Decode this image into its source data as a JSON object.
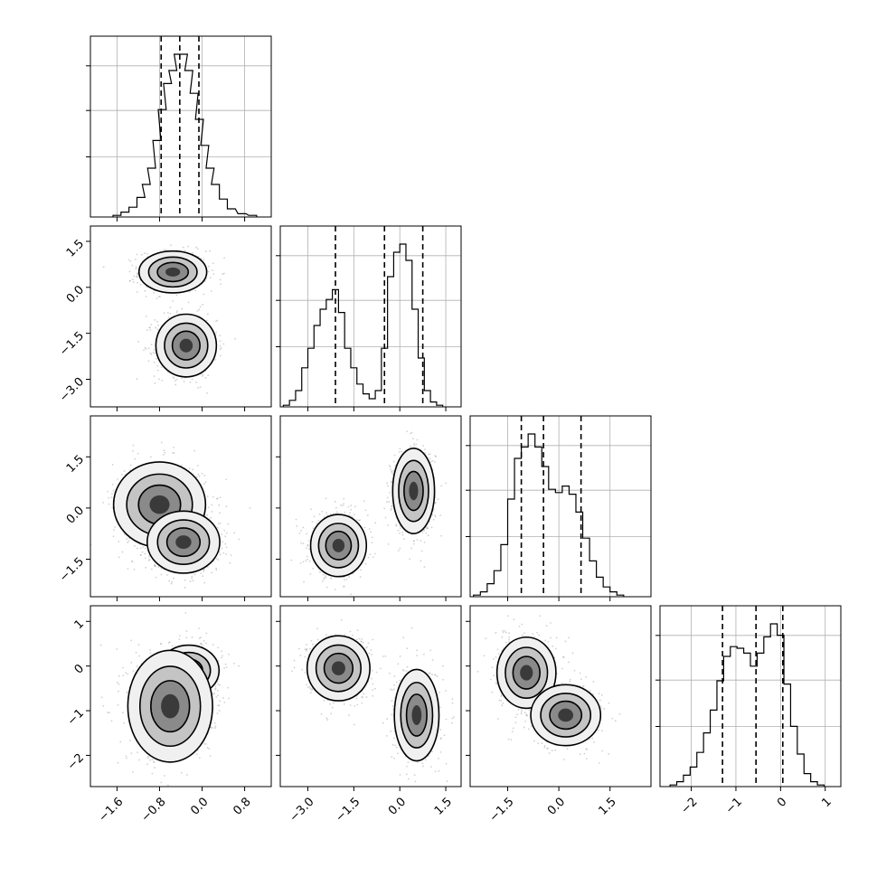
{
  "chart_data": {
    "type": "corner",
    "parameters": [
      {
        "ticks": [
          -1.6,
          -0.8,
          0.0,
          0.8
        ],
        "tick_labels": [
          "−1.6",
          "−0.8",
          "0.0",
          "0.8"
        ],
        "range": [
          -2.1,
          1.3
        ],
        "quantiles": [
          -0.77,
          -0.42,
          -0.06
        ],
        "hist_bins": [
          {
            "x": -1.6,
            "y": 0.01
          },
          {
            "x": -1.45,
            "y": 0.03
          },
          {
            "x": -1.3,
            "y": 0.06
          },
          {
            "x": -1.15,
            "y": 0.12
          },
          {
            "x": -1.05,
            "y": 0.2
          },
          {
            "x": -0.95,
            "y": 0.3
          },
          {
            "x": -0.85,
            "y": 0.47
          },
          {
            "x": -0.75,
            "y": 0.66
          },
          {
            "x": -0.65,
            "y": 0.82
          },
          {
            "x": -0.55,
            "y": 0.9
          },
          {
            "x": -0.45,
            "y": 1.0
          },
          {
            "x": -0.35,
            "y": 1.0
          },
          {
            "x": -0.25,
            "y": 0.9
          },
          {
            "x": -0.15,
            "y": 0.76
          },
          {
            "x": -0.05,
            "y": 0.6
          },
          {
            "x": 0.05,
            "y": 0.44
          },
          {
            "x": 0.15,
            "y": 0.3
          },
          {
            "x": 0.25,
            "y": 0.2
          },
          {
            "x": 0.4,
            "y": 0.11
          },
          {
            "x": 0.55,
            "y": 0.05
          },
          {
            "x": 0.75,
            "y": 0.02
          },
          {
            "x": 0.95,
            "y": 0.01
          }
        ]
      },
      {
        "ticks": [
          -3.0,
          -1.5,
          0.0,
          1.5
        ],
        "tick_labels": [
          "−3.0",
          "−1.5",
          "0.0",
          "1.5"
        ],
        "range": [
          -3.9,
          2.0
        ],
        "quantiles": [
          -2.1,
          -0.5,
          0.75
        ],
        "hist_bins": [
          {
            "x": -3.7,
            "y": 0.01
          },
          {
            "x": -3.5,
            "y": 0.04
          },
          {
            "x": -3.3,
            "y": 0.1
          },
          {
            "x": -3.1,
            "y": 0.24
          },
          {
            "x": -2.9,
            "y": 0.36
          },
          {
            "x": -2.7,
            "y": 0.5
          },
          {
            "x": -2.5,
            "y": 0.6
          },
          {
            "x": -2.3,
            "y": 0.66
          },
          {
            "x": -2.1,
            "y": 0.72
          },
          {
            "x": -1.9,
            "y": 0.58
          },
          {
            "x": -1.7,
            "y": 0.36
          },
          {
            "x": -1.5,
            "y": 0.24
          },
          {
            "x": -1.3,
            "y": 0.14
          },
          {
            "x": -1.1,
            "y": 0.08
          },
          {
            "x": -0.9,
            "y": 0.05
          },
          {
            "x": -0.7,
            "y": 0.1
          },
          {
            "x": -0.5,
            "y": 0.36
          },
          {
            "x": -0.3,
            "y": 0.8
          },
          {
            "x": -0.1,
            "y": 0.95
          },
          {
            "x": 0.1,
            "y": 1.0
          },
          {
            "x": 0.3,
            "y": 0.9
          },
          {
            "x": 0.5,
            "y": 0.6
          },
          {
            "x": 0.7,
            "y": 0.3
          },
          {
            "x": 0.9,
            "y": 0.1
          },
          {
            "x": 1.1,
            "y": 0.03
          },
          {
            "x": 1.3,
            "y": 0.01
          }
        ]
      },
      {
        "ticks": [
          -1.5,
          0.0,
          1.5
        ],
        "tick_labels": [
          "−1.5",
          "0.0",
          "1.5"
        ],
        "range": [
          -2.6,
          2.7
        ],
        "quantiles": [
          -1.1,
          -0.45,
          0.65
        ],
        "hist_bins": [
          {
            "x": -2.4,
            "y": 0.01
          },
          {
            "x": -2.2,
            "y": 0.03
          },
          {
            "x": -2.0,
            "y": 0.08
          },
          {
            "x": -1.8,
            "y": 0.16
          },
          {
            "x": -1.6,
            "y": 0.32
          },
          {
            "x": -1.4,
            "y": 0.6
          },
          {
            "x": -1.2,
            "y": 0.85
          },
          {
            "x": -1.0,
            "y": 0.92
          },
          {
            "x": -0.8,
            "y": 1.0
          },
          {
            "x": -0.6,
            "y": 0.92
          },
          {
            "x": -0.4,
            "y": 0.8
          },
          {
            "x": -0.2,
            "y": 0.66
          },
          {
            "x": 0.0,
            "y": 0.64
          },
          {
            "x": 0.2,
            "y": 0.68
          },
          {
            "x": 0.4,
            "y": 0.63
          },
          {
            "x": 0.6,
            "y": 0.52
          },
          {
            "x": 0.8,
            "y": 0.36
          },
          {
            "x": 1.0,
            "y": 0.22
          },
          {
            "x": 1.2,
            "y": 0.12
          },
          {
            "x": 1.4,
            "y": 0.06
          },
          {
            "x": 1.6,
            "y": 0.03
          },
          {
            "x": 1.8,
            "y": 0.01
          }
        ]
      },
      {
        "ticks": [
          -2,
          -1,
          0,
          1
        ],
        "tick_labels": [
          "−2",
          "−1",
          "0",
          "1"
        ],
        "range": [
          -2.7,
          1.35
        ],
        "quantiles": [
          -1.3,
          -0.55,
          0.05
        ],
        "hist_bins": [
          {
            "x": -2.4,
            "y": 0.01
          },
          {
            "x": -2.25,
            "y": 0.03
          },
          {
            "x": -2.1,
            "y": 0.07
          },
          {
            "x": -1.95,
            "y": 0.12
          },
          {
            "x": -1.8,
            "y": 0.21
          },
          {
            "x": -1.65,
            "y": 0.33
          },
          {
            "x": -1.5,
            "y": 0.47
          },
          {
            "x": -1.35,
            "y": 0.65
          },
          {
            "x": -1.2,
            "y": 0.8
          },
          {
            "x": -1.05,
            "y": 0.86
          },
          {
            "x": -0.9,
            "y": 0.85
          },
          {
            "x": -0.75,
            "y": 0.82
          },
          {
            "x": -0.6,
            "y": 0.74
          },
          {
            "x": -0.45,
            "y": 0.82
          },
          {
            "x": -0.3,
            "y": 0.92
          },
          {
            "x": -0.15,
            "y": 1.0
          },
          {
            "x": 0.0,
            "y": 0.93
          },
          {
            "x": 0.15,
            "y": 0.63
          },
          {
            "x": 0.3,
            "y": 0.37
          },
          {
            "x": 0.45,
            "y": 0.2
          },
          {
            "x": 0.6,
            "y": 0.08
          },
          {
            "x": 0.75,
            "y": 0.03
          },
          {
            "x": 0.9,
            "y": 0.01
          }
        ]
      }
    ],
    "pair_panels": [
      {
        "row": 1,
        "col": 0,
        "clusters": [
          {
            "cx": -0.55,
            "cy": 0.5,
            "sx": 0.28,
            "sy": 0.3
          },
          {
            "cx": -0.3,
            "cy": -1.9,
            "sx": 0.25,
            "sy": 0.45
          }
        ]
      },
      {
        "row": 2,
        "col": 0,
        "clusters": [
          {
            "cx": -0.8,
            "cy": 0.1,
            "sx": 0.38,
            "sy": 0.55
          },
          {
            "cx": -0.35,
            "cy": -1.0,
            "sx": 0.3,
            "sy": 0.4
          }
        ]
      },
      {
        "row": 2,
        "col": 1,
        "clusters": [
          {
            "cx": -2.0,
            "cy": -1.1,
            "sx": 0.4,
            "sy": 0.4
          },
          {
            "cx": 0.45,
            "cy": 0.5,
            "sx": 0.3,
            "sy": 0.55
          }
        ]
      },
      {
        "row": 3,
        "col": 0,
        "clusters": [
          {
            "cx": -0.25,
            "cy": -0.1,
            "sx": 0.25,
            "sy": 0.25
          },
          {
            "cx": -0.6,
            "cy": -0.9,
            "sx": 0.35,
            "sy": 0.55
          }
        ]
      },
      {
        "row": 3,
        "col": 1,
        "clusters": [
          {
            "cx": -2.0,
            "cy": -0.05,
            "sx": 0.45,
            "sy": 0.32
          },
          {
            "cx": 0.55,
            "cy": -1.1,
            "sx": 0.32,
            "sy": 0.45
          }
        ]
      },
      {
        "row": 3,
        "col": 2,
        "clusters": [
          {
            "cx": -0.95,
            "cy": -0.15,
            "sx": 0.38,
            "sy": 0.35
          },
          {
            "cx": 0.2,
            "cy": -1.1,
            "sx": 0.45,
            "sy": 0.3
          }
        ]
      }
    ],
    "grid": true,
    "title": "",
    "xlabel": "",
    "ylabel": ""
  }
}
